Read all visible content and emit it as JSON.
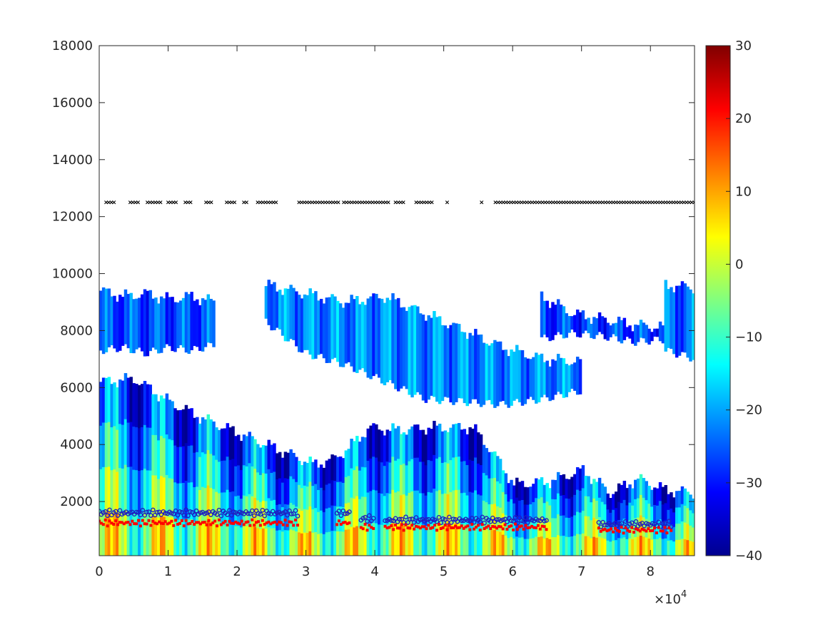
{
  "chart_data": {
    "type": "heatmap",
    "title": "",
    "xlabel": "",
    "ylabel": "",
    "x_exponent_label": "×10",
    "x_exponent_power": "4",
    "xlim": [
      0,
      86400
    ],
    "ylim": [
      100,
      18000
    ],
    "x_ticks": [
      0,
      10000,
      20000,
      30000,
      40000,
      50000,
      60000,
      70000,
      80000
    ],
    "x_tick_labels": [
      "0",
      "1",
      "2",
      "3",
      "4",
      "5",
      "6",
      "7",
      "8"
    ],
    "y_ticks": [
      2000,
      4000,
      6000,
      8000,
      10000,
      12000,
      14000,
      16000,
      18000
    ],
    "y_tick_labels": [
      "2000",
      "4000",
      "6000",
      "8000",
      "10000",
      "12000",
      "14000",
      "16000",
      "18000"
    ],
    "grid": false,
    "colormap": "jet",
    "colorbar": {
      "range": [
        -40,
        30
      ],
      "ticks": [
        -40,
        -30,
        -20,
        -10,
        0,
        10,
        20,
        30
      ],
      "tick_labels": [
        "−40",
        "−30",
        "−20",
        "−10",
        "0",
        "10",
        "20",
        "30"
      ],
      "colors": [
        "#00008f",
        "#0000ff",
        "#0080ff",
        "#00ffff",
        "#80ff80",
        "#ffff00",
        "#ff8000",
        "#ff0000",
        "#800000"
      ]
    },
    "regions": [
      {
        "name": "upper-layer-a",
        "x": [
          0,
          16500
        ],
        "y_bottom": [
          7300,
          7400,
          7200,
          7400,
          7300,
          7500
        ],
        "y_top": [
          9400,
          9200,
          9300,
          9100,
          9200,
          9000
        ],
        "value": -26
      },
      {
        "name": "upper-layer-b",
        "x": [
          24000,
          70000
        ],
        "y_bottom": [
          8300,
          7200,
          6800,
          6200,
          5600,
          5500,
          5400,
          5600,
          5900
        ],
        "y_top": [
          9600,
          9300,
          9000,
          9200,
          8600,
          8000,
          7400,
          7000,
          6900
        ],
        "value": -22
      },
      {
        "name": "upper-layer-c",
        "x": [
          64000,
          82000
        ],
        "y_bottom": [
          7700,
          7900,
          7800,
          7600,
          7700
        ],
        "y_top": [
          9200,
          8600,
          8400,
          8200,
          8100
        ],
        "value": -27
      },
      {
        "name": "upper-layer-d",
        "x": [
          82000,
          86400
        ],
        "y_bottom": [
          7300,
          7000
        ],
        "y_top": [
          9600,
          9500
        ],
        "value": -24
      },
      {
        "name": "boundary-layer",
        "x": [
          0,
          5000,
          10000,
          15000,
          19000,
          23000,
          27000,
          31000,
          34000,
          37000,
          39000,
          43000,
          48000,
          54000,
          57000,
          60000,
          65000,
          70000,
          74000,
          78000,
          82000,
          86400
        ],
        "y_top": [
          6200,
          6300,
          5500,
          4900,
          4500,
          4100,
          3700,
          3300,
          3500,
          4100,
          4600,
          4500,
          4600,
          4600,
          3700,
          2600,
          2700,
          3100,
          2300,
          2800,
          2400,
          2300
        ],
        "value": 2
      }
    ],
    "series": [
      {
        "marker": "x",
        "color": "#000000",
        "y": 12500,
        "x_segments": [
          [
            1000,
            2500
          ],
          [
            4500,
            6000
          ],
          [
            7000,
            9000
          ],
          [
            10000,
            11500
          ],
          [
            12500,
            13500
          ],
          [
            15500,
            16500
          ],
          [
            18500,
            20000
          ],
          [
            21000,
            21500
          ],
          [
            23000,
            26000
          ],
          [
            29000,
            35000
          ],
          [
            35500,
            42000
          ],
          [
            43000,
            44500
          ],
          [
            46000,
            48500
          ],
          [
            50500,
            50700
          ],
          [
            55500,
            55700
          ],
          [
            57500,
            86400
          ]
        ]
      },
      {
        "marker": "o",
        "color": "#1f1fbf",
        "x_segments": [
          [
            0,
            29000
          ],
          [
            34500,
            36500
          ],
          [
            38000,
            40000
          ],
          [
            41500,
            65000
          ],
          [
            72500,
            83000
          ]
        ],
        "y": [
          1600,
          1600,
          1400,
          1350,
          1200
        ]
      },
      {
        "marker": "s",
        "color": "#ff0000",
        "x_segments": [
          [
            0,
            29000
          ],
          [
            34500,
            36500
          ],
          [
            38000,
            40000
          ],
          [
            41500,
            65000
          ],
          [
            72500,
            83000
          ]
        ],
        "y": [
          1250,
          1250,
          1100,
          1100,
          1000
        ]
      }
    ]
  }
}
